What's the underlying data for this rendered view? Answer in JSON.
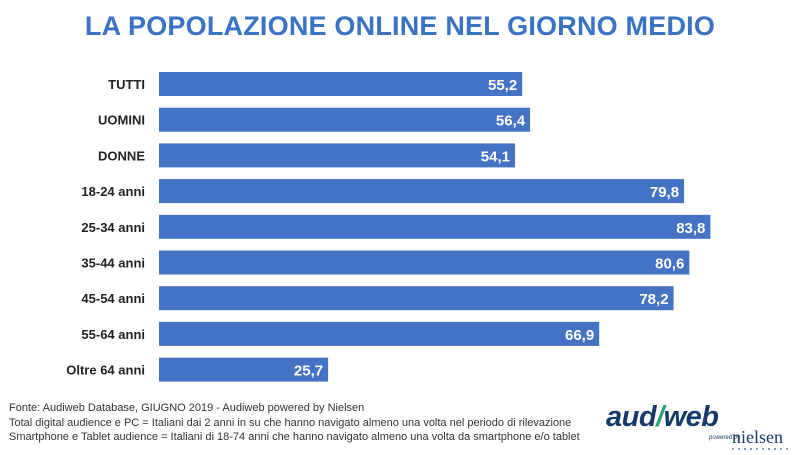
{
  "title": "LA POPOLAZIONE ONLINE NEL GIORNO MEDIO",
  "chart_data": {
    "type": "bar",
    "orientation": "horizontal",
    "categories": [
      "TUTTI",
      "UOMINI",
      "DONNE",
      "18-24 anni",
      "25-34 anni",
      "35-44 anni",
      "45-54 anni",
      "55-64 anni",
      "Oltre 64 anni"
    ],
    "values": [
      55.2,
      56.4,
      54.1,
      79.8,
      83.8,
      80.6,
      78.2,
      66.9,
      25.7
    ],
    "value_labels": [
      "55,2",
      "56,4",
      "54,1",
      "79,8",
      "83,8",
      "80,6",
      "78,2",
      "66,9",
      "25,7"
    ],
    "xlim": [
      0,
      100
    ],
    "grid": false,
    "legend": "none",
    "bar_color": "#4472c4"
  },
  "footnotes": {
    "line1": "Fonte: Audiweb Database, GIUGNO 2019 - Audiweb powered by Nielsen",
    "line2": "Total digital audience e PC = Italiani dai 2 anni in su che hanno navigato almeno una volta nel periodo di rilevazione",
    "line3": "Smartphone e Tablet audience = Italiani di 18-74 anni che hanno navigato almeno una volta da smartphone e/o tablet"
  },
  "logo": {
    "main_left": "aud",
    "main_slash": "/",
    "main_right": "web",
    "powered": "powered by",
    "nielsen": "nielsen"
  }
}
